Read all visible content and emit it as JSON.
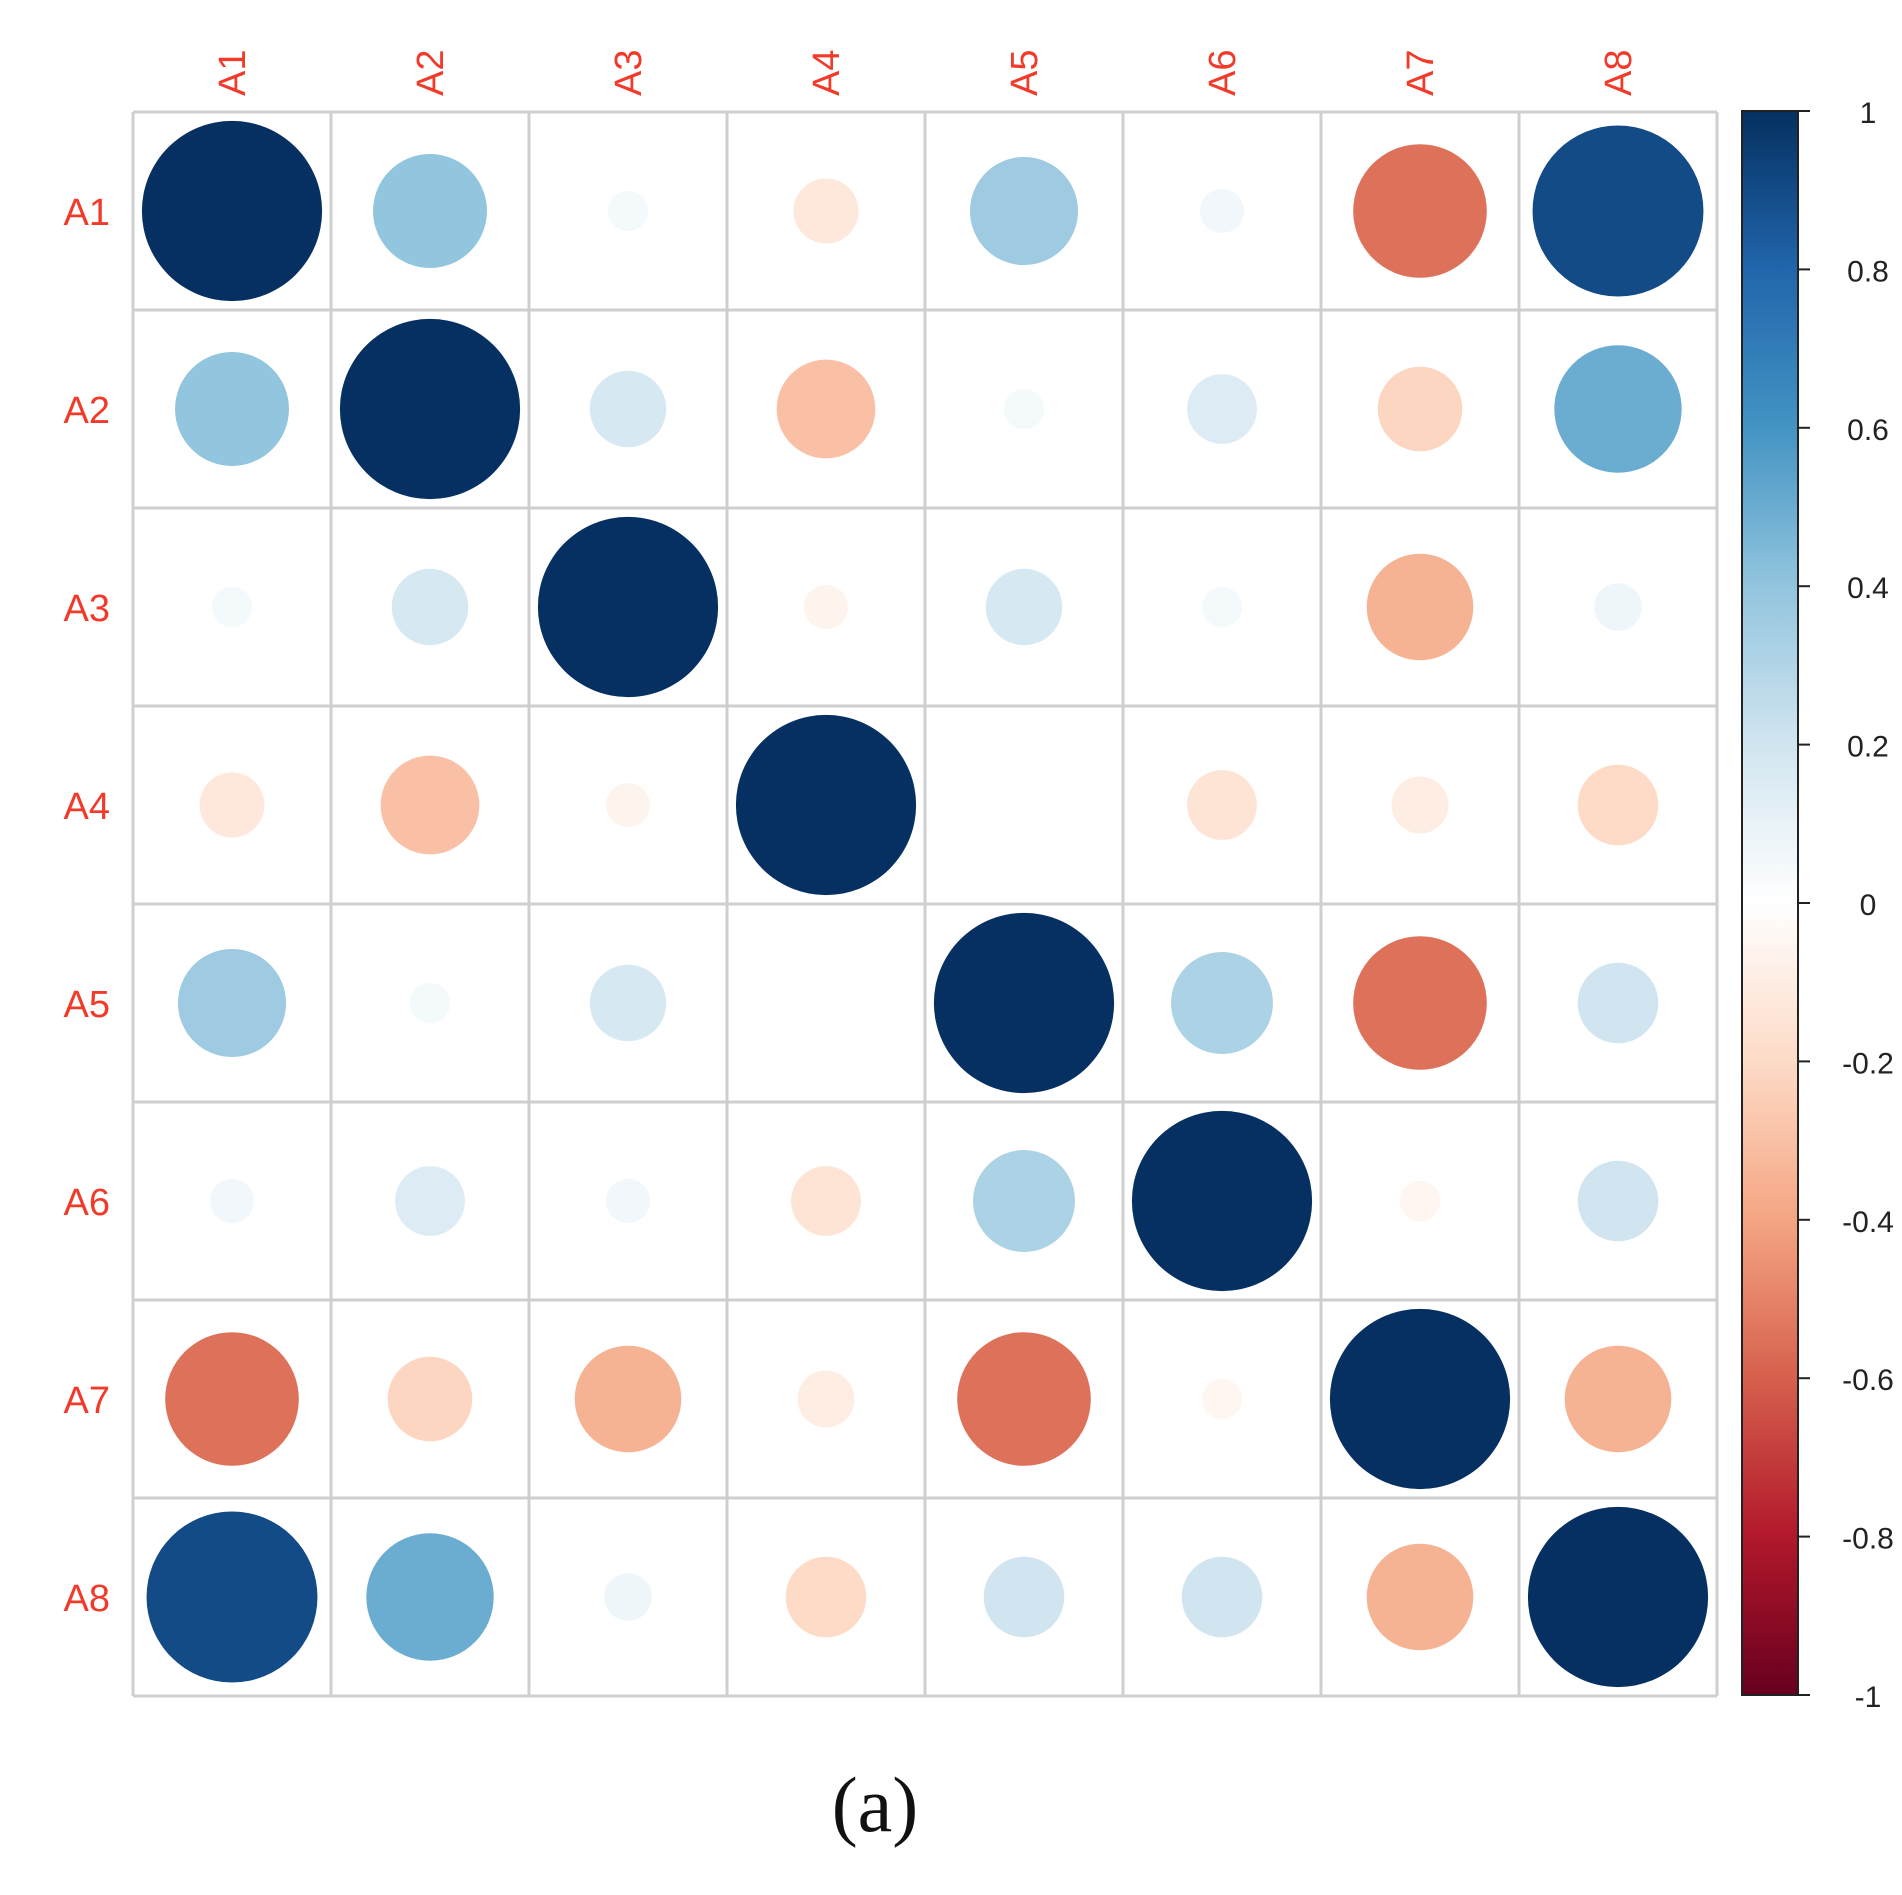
{
  "caption": "(a)",
  "chart_data": {
    "type": "heatmap",
    "subtype": "correlation-circles",
    "variables": [
      "A1",
      "A2",
      "A3",
      "A4",
      "A5",
      "A6",
      "A7",
      "A8"
    ],
    "matrix": [
      [
        1.0,
        0.4,
        0.05,
        -0.13,
        0.36,
        0.06,
        -0.55,
        0.9
      ],
      [
        0.4,
        1.0,
        0.18,
        -0.3,
        0.05,
        0.15,
        -0.22,
        0.5
      ],
      [
        0.05,
        0.18,
        1.0,
        -0.06,
        0.18,
        0.05,
        -0.35,
        0.07
      ],
      [
        -0.13,
        -0.3,
        -0.06,
        1.0,
        0.0,
        -0.15,
        -0.1,
        -0.2
      ],
      [
        0.36,
        0.05,
        0.18,
        0.0,
        1.0,
        0.32,
        -0.55,
        0.2
      ],
      [
        0.06,
        0.15,
        0.06,
        -0.15,
        0.32,
        1.0,
        -0.05,
        0.2
      ],
      [
        -0.55,
        -0.22,
        -0.35,
        -0.1,
        -0.55,
        -0.05,
        1.0,
        -0.35
      ],
      [
        0.9,
        0.5,
        0.07,
        -0.2,
        0.2,
        0.2,
        -0.35,
        1.0
      ]
    ],
    "label_color": "#f23a2a",
    "colorbar": {
      "ticks": [
        "1",
        "0.8",
        "0.6",
        "0.4",
        "0.2",
        "0",
        "-0.2",
        "-0.4",
        "-0.6",
        "-0.8",
        "-1"
      ],
      "range": [
        -1,
        1
      ]
    },
    "color_scale": {
      "stops": [
        {
          "v": -1.0,
          "color": "#67001f"
        },
        {
          "v": -0.8,
          "color": "#b2182b"
        },
        {
          "v": -0.6,
          "color": "#d6604d"
        },
        {
          "v": -0.4,
          "color": "#f4a582"
        },
        {
          "v": -0.2,
          "color": "#fddbc7"
        },
        {
          "v": 0.0,
          "color": "#ffffff"
        },
        {
          "v": 0.2,
          "color": "#d1e5f0"
        },
        {
          "v": 0.4,
          "color": "#92c5de"
        },
        {
          "v": 0.6,
          "color": "#4393c3"
        },
        {
          "v": 0.8,
          "color": "#2166ac"
        },
        {
          "v": 1.0,
          "color": "#053061"
        }
      ]
    },
    "grid": true,
    "legend": "right"
  }
}
